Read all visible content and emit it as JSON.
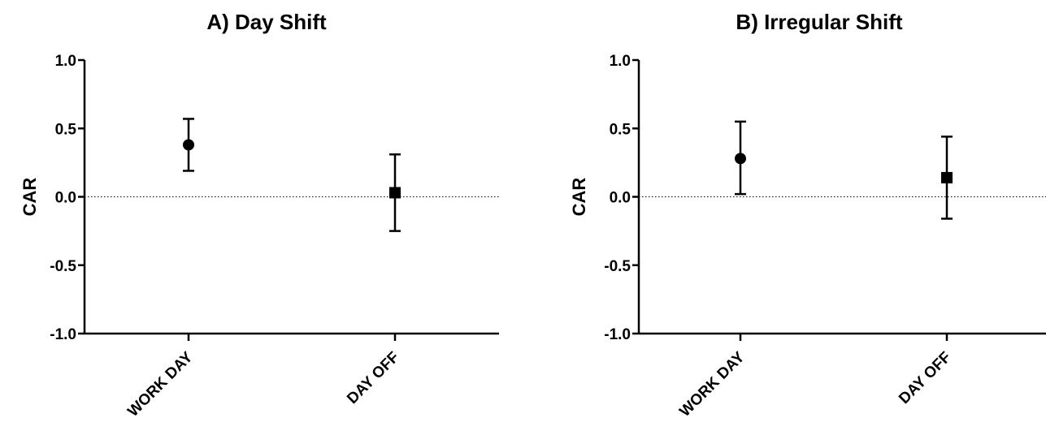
{
  "chart_data": [
    {
      "type": "scatter",
      "title": "A) Day Shift",
      "xlabel": "",
      "ylabel": "CAR",
      "ylim": [
        -1.0,
        1.0
      ],
      "yticks": [
        "-1.0",
        "-0.5",
        "0.0",
        "0.5",
        "1.0"
      ],
      "categories": [
        "WORK DAY",
        "DAY OFF"
      ],
      "points": [
        {
          "category": "WORK DAY",
          "value": 0.38,
          "err_low": 0.19,
          "err_high": 0.57,
          "marker": "circle"
        },
        {
          "category": "DAY OFF",
          "value": 0.03,
          "err_low": -0.25,
          "err_high": 0.31,
          "marker": "square"
        }
      ],
      "reference_line": {
        "y": 0.0,
        "style": "dotted"
      },
      "grid": false
    },
    {
      "type": "scatter",
      "title": "B) Irregular Shift",
      "xlabel": "",
      "ylabel": "CAR",
      "ylim": [
        -1.0,
        1.0
      ],
      "yticks": [
        "-1.0",
        "-0.5",
        "0.0",
        "0.5",
        "1.0"
      ],
      "categories": [
        "WORK DAY",
        "DAY OFF"
      ],
      "points": [
        {
          "category": "WORK DAY",
          "value": 0.28,
          "err_low": 0.02,
          "err_high": 0.55,
          "marker": "circle"
        },
        {
          "category": "DAY OFF",
          "value": 0.14,
          "err_low": -0.16,
          "err_high": 0.44,
          "marker": "square"
        }
      ],
      "reference_line": {
        "y": 0.0,
        "style": "dotted"
      },
      "grid": false
    }
  ],
  "colors": {
    "marks": "#000000"
  }
}
